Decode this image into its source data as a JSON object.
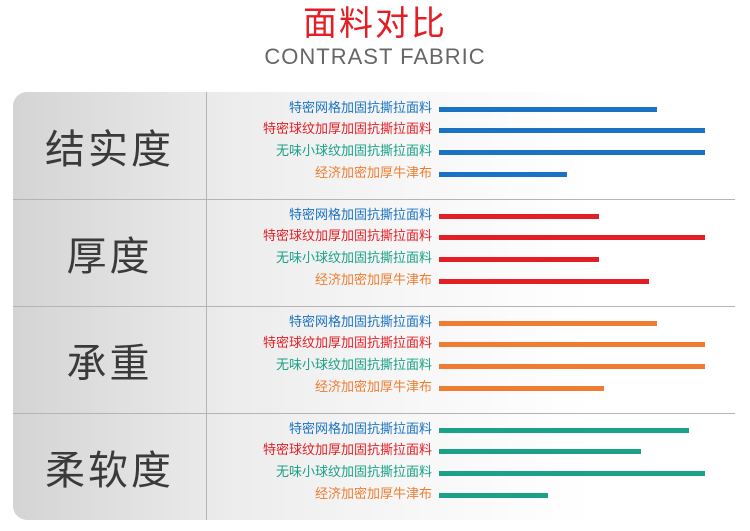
{
  "title": "面料对比",
  "subtitle": "CONTRAST FABRIC",
  "colors": {
    "label_text": "#3a3a3a",
    "fabric_label_colors": [
      "#1a73c2",
      "#e31e24",
      "#1aa187",
      "#ee7d31"
    ],
    "category_bar_colors": [
      "#1a73c2",
      "#e31e24",
      "#ee7d31",
      "#1aa187"
    ]
  },
  "chart_data": {
    "type": "bar",
    "orientation": "horizontal",
    "title": "面料对比",
    "subtitle": "CONTRAST FABRIC",
    "fabrics": [
      "特密网格加固抗撕拉面料",
      "特密球纹加厚加固抗撕拉面料",
      "无味小球纹加固抗撕拉面料",
      "经济加密加厚牛津布"
    ],
    "groups": [
      {
        "name": "结实度",
        "values": [
          82,
          100,
          100,
          48
        ]
      },
      {
        "name": "厚度",
        "values": [
          60,
          100,
          60,
          79
        ]
      },
      {
        "name": "承重",
        "values": [
          82,
          100,
          100,
          62
        ]
      },
      {
        "name": "柔软度",
        "values": [
          94,
          76,
          100,
          41
        ]
      }
    ],
    "xlim": [
      0,
      100
    ],
    "axis_ticks": false,
    "grid": false,
    "legend": "none"
  }
}
